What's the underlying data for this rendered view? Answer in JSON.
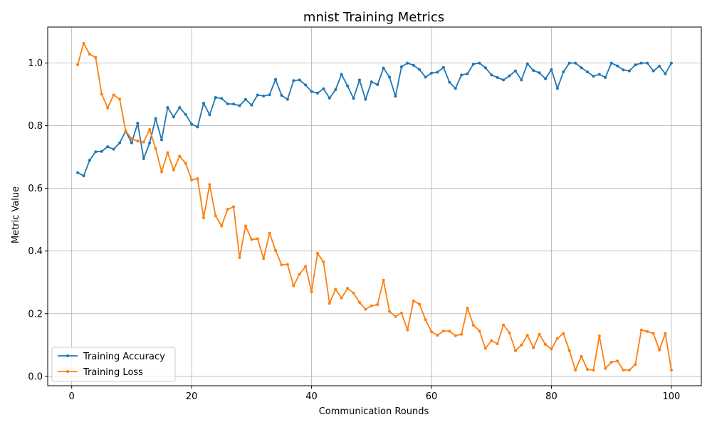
{
  "chart_data": {
    "type": "line",
    "title": "mnist Training Metrics",
    "xlabel": "Communication Rounds",
    "ylabel": "Metric Value",
    "xlim": [
      -4,
      105
    ],
    "ylim": [
      -0.03,
      1.115
    ],
    "x_ticks": [
      0,
      20,
      40,
      60,
      80,
      100
    ],
    "y_ticks": [
      0.0,
      0.2,
      0.4,
      0.6,
      0.8,
      1.0
    ],
    "x_tick_labels": [
      "0",
      "20",
      "40",
      "60",
      "80",
      "100"
    ],
    "y_tick_labels": [
      "0.0",
      "0.2",
      "0.4",
      "0.6",
      "0.8",
      "1.0"
    ],
    "grid": true,
    "legend_position": "lower-left",
    "series": [
      {
        "name": "Training Accuracy",
        "color": "#1f77b4",
        "x": [
          1,
          2,
          3,
          4,
          5,
          6,
          7,
          8,
          9,
          10,
          11,
          12,
          13,
          14,
          15,
          16,
          17,
          18,
          19,
          20,
          21,
          22,
          23,
          24,
          25,
          26,
          27,
          28,
          29,
          30,
          31,
          32,
          33,
          34,
          35,
          36,
          37,
          38,
          39,
          40,
          41,
          42,
          43,
          44,
          45,
          46,
          47,
          48,
          49,
          50,
          51,
          52,
          53,
          54,
          55,
          56,
          57,
          58,
          59,
          60,
          61,
          62,
          63,
          64,
          65,
          66,
          67,
          68,
          69,
          70,
          71,
          72,
          73,
          74,
          75,
          76,
          77,
          78,
          79,
          80,
          81,
          82,
          83,
          84,
          85,
          86,
          87,
          88,
          89,
          90,
          91,
          92,
          93,
          94,
          95,
          96,
          97,
          98,
          99,
          100
        ],
        "values": [
          0.65,
          0.64,
          0.69,
          0.717,
          0.718,
          0.733,
          0.725,
          0.745,
          0.783,
          0.745,
          0.808,
          0.695,
          0.745,
          0.823,
          0.755,
          0.858,
          0.828,
          0.858,
          0.836,
          0.805,
          0.796,
          0.872,
          0.835,
          0.89,
          0.887,
          0.87,
          0.869,
          0.864,
          0.884,
          0.866,
          0.898,
          0.895,
          0.899,
          0.948,
          0.897,
          0.884,
          0.944,
          0.946,
          0.93,
          0.909,
          0.904,
          0.918,
          0.888,
          0.915,
          0.964,
          0.927,
          0.887,
          0.946,
          0.884,
          0.94,
          0.931,
          0.984,
          0.955,
          0.894,
          0.988,
          1.0,
          0.993,
          0.979,
          0.955,
          0.968,
          0.971,
          0.986,
          0.939,
          0.919,
          0.962,
          0.966,
          0.997,
          1.0,
          0.985,
          0.962,
          0.954,
          0.946,
          0.959,
          0.975,
          0.946,
          0.998,
          0.976,
          0.969,
          0.95,
          0.979,
          0.919,
          0.972,
          1.0,
          1.0,
          0.985,
          0.972,
          0.958,
          0.964,
          0.954,
          1.0,
          0.991,
          0.978,
          0.975,
          0.994,
          1.0,
          1.0,
          0.975,
          0.99,
          0.966,
          1.0
        ]
      },
      {
        "name": "Training Loss",
        "color": "#ff7f0e",
        "x": [
          1,
          2,
          3,
          4,
          5,
          6,
          7,
          8,
          9,
          10,
          11,
          12,
          13,
          14,
          15,
          16,
          17,
          18,
          19,
          20,
          21,
          22,
          23,
          24,
          25,
          26,
          27,
          28,
          29,
          30,
          31,
          32,
          33,
          34,
          35,
          36,
          37,
          38,
          39,
          40,
          41,
          42,
          43,
          44,
          45,
          46,
          47,
          48,
          49,
          50,
          51,
          52,
          53,
          54,
          55,
          56,
          57,
          58,
          59,
          60,
          61,
          62,
          63,
          64,
          65,
          66,
          67,
          68,
          69,
          70,
          71,
          72,
          73,
          74,
          75,
          76,
          77,
          78,
          79,
          80,
          81,
          82,
          83,
          84,
          85,
          86,
          87,
          88,
          89,
          90,
          91,
          92,
          93,
          94,
          95,
          96,
          97,
          98,
          99,
          100
        ],
        "values": [
          0.995,
          1.063,
          1.028,
          1.018,
          0.901,
          0.857,
          0.898,
          0.885,
          0.784,
          0.758,
          0.751,
          0.748,
          0.788,
          0.727,
          0.653,
          0.714,
          0.659,
          0.703,
          0.68,
          0.627,
          0.631,
          0.506,
          0.612,
          0.512,
          0.48,
          0.533,
          0.541,
          0.379,
          0.48,
          0.437,
          0.439,
          0.376,
          0.457,
          0.402,
          0.356,
          0.357,
          0.289,
          0.326,
          0.351,
          0.27,
          0.393,
          0.365,
          0.233,
          0.278,
          0.25,
          0.281,
          0.266,
          0.236,
          0.214,
          0.225,
          0.229,
          0.307,
          0.207,
          0.191,
          0.202,
          0.148,
          0.241,
          0.23,
          0.181,
          0.142,
          0.131,
          0.145,
          0.144,
          0.13,
          0.134,
          0.218,
          0.163,
          0.145,
          0.089,
          0.114,
          0.104,
          0.164,
          0.139,
          0.082,
          0.1,
          0.131,
          0.091,
          0.134,
          0.102,
          0.087,
          0.121,
          0.137,
          0.082,
          0.02,
          0.064,
          0.022,
          0.02,
          0.129,
          0.025,
          0.045,
          0.049,
          0.02,
          0.02,
          0.038,
          0.148,
          0.143,
          0.137,
          0.084,
          0.137,
          0.02
        ]
      }
    ]
  }
}
